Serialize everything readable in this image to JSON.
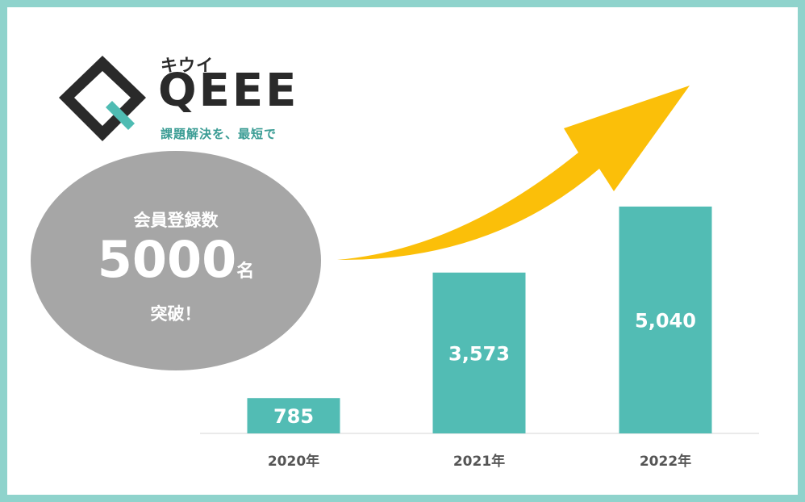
{
  "logo": {
    "kana": "キウイ",
    "word": "QEEE",
    "tagline": "課題解決を、最短で",
    "colors": {
      "dark": "#2a2a2a",
      "accent": "#4fbcb3"
    }
  },
  "badge": {
    "line1": "会員登録数",
    "number": "5000",
    "unit": "名",
    "line3": "突破！",
    "color": "#a6a6a6"
  },
  "chart_data": {
    "type": "bar",
    "categories": [
      "2020年",
      "2021年",
      "2022年"
    ],
    "values": [
      785,
      3573,
      5040
    ],
    "value_labels": [
      "785",
      "3,573",
      "5,040"
    ],
    "bar_color": "#52bcb4",
    "arrow_color": "#fbbf09",
    "grid": false,
    "ylim": [
      0,
      5200
    ]
  }
}
